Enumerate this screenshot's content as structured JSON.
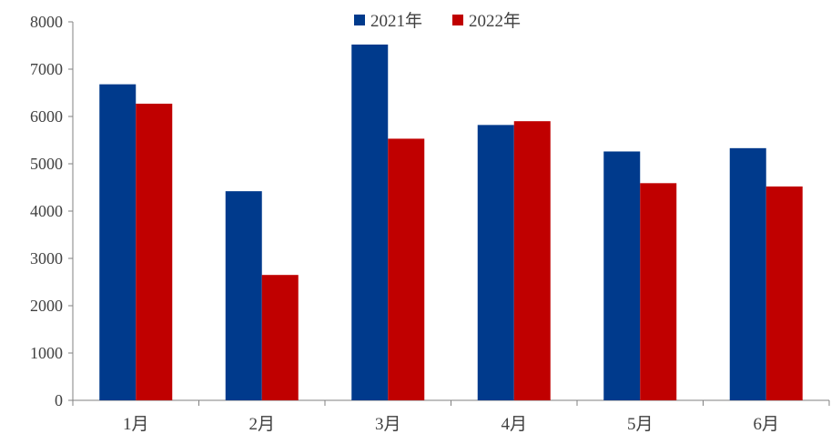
{
  "chart_data": {
    "type": "bar",
    "categories": [
      "1月",
      "2月",
      "3月",
      "4月",
      "5月",
      "6月"
    ],
    "series": [
      {
        "name": "2021年",
        "color": "#003A8C",
        "values": [
          6680,
          4420,
          7520,
          5820,
          5260,
          5330
        ]
      },
      {
        "name": "2022年",
        "color": "#C00000",
        "values": [
          6270,
          2650,
          5530,
          5900,
          4590,
          4520
        ]
      }
    ],
    "ylim": [
      0,
      8000
    ],
    "yticks": [
      0,
      1000,
      2000,
      3000,
      4000,
      5000,
      6000,
      7000,
      8000
    ],
    "legend_position": "top-center",
    "grid": false
  }
}
